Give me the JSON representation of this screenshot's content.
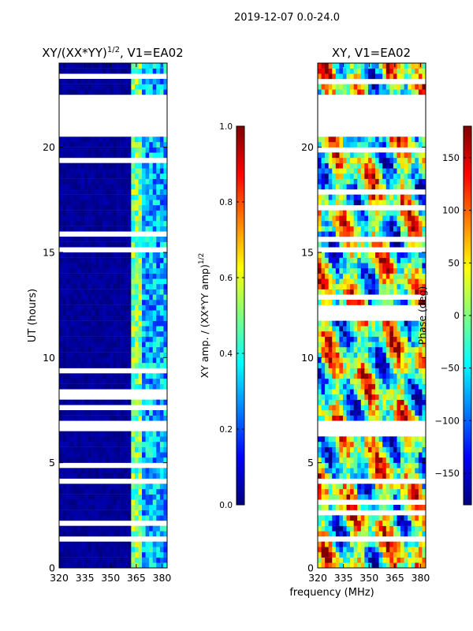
{
  "header": {
    "title": "2019-12-07 0.0-24.0"
  },
  "colors": {
    "jet": [
      "#00007f",
      "#0000ff",
      "#007fff",
      "#00ffff",
      "#7fff7f",
      "#ffff00",
      "#ff7f00",
      "#ff0000",
      "#7f0000"
    ],
    "frame": "#000000",
    "gap": "#ffffff"
  },
  "chart_data": [
    {
      "type": "heatmap",
      "title_main": "XY/(XX*YY)",
      "title_sup": "1/2",
      "title_tail": ", V1=EA02",
      "xlabel": "frequency (MHz)",
      "ylabel": "UT (hours)",
      "xlim": [
        320,
        383
      ],
      "ylim": [
        0,
        24
      ],
      "x_ticks": [
        320,
        335,
        350,
        365,
        380
      ],
      "y_ticks": [
        0,
        5,
        10,
        15,
        20
      ],
      "data_gaps_hours": [
        [
          20.4,
          22.5
        ],
        [
          6.6,
          6.9
        ],
        [
          3.9,
          4.2
        ],
        [
          1.3,
          1.5
        ]
      ],
      "bright_band_MHz": [
        363,
        368
      ],
      "colorbar": {
        "label_main": "XY amp. / (XX*YY amp)",
        "label_sup": "1/2",
        "range": [
          0.0,
          1.0
        ],
        "ticks": [
          "0.0",
          "0.2",
          "0.4",
          "0.6",
          "0.8",
          "1.0"
        ]
      }
    },
    {
      "type": "heatmap",
      "title": "XY, V1=EA02",
      "xlim": [
        320,
        383
      ],
      "ylim": [
        0,
        24
      ],
      "x_ticks": [
        320,
        335,
        350,
        365,
        380
      ],
      "y_ticks": [
        0,
        5,
        10,
        15,
        20
      ],
      "data_gaps_hours": [
        [
          20.4,
          22.5
        ],
        [
          6.6,
          6.9
        ],
        [
          3.9,
          4.2
        ],
        [
          1.3,
          1.5
        ]
      ],
      "colorbar": {
        "label": "Phase (deg)",
        "range": [
          -180,
          180
        ],
        "ticks": [
          "−150",
          "−100",
          "−50",
          "0",
          "50",
          "100",
          "150"
        ]
      }
    }
  ]
}
